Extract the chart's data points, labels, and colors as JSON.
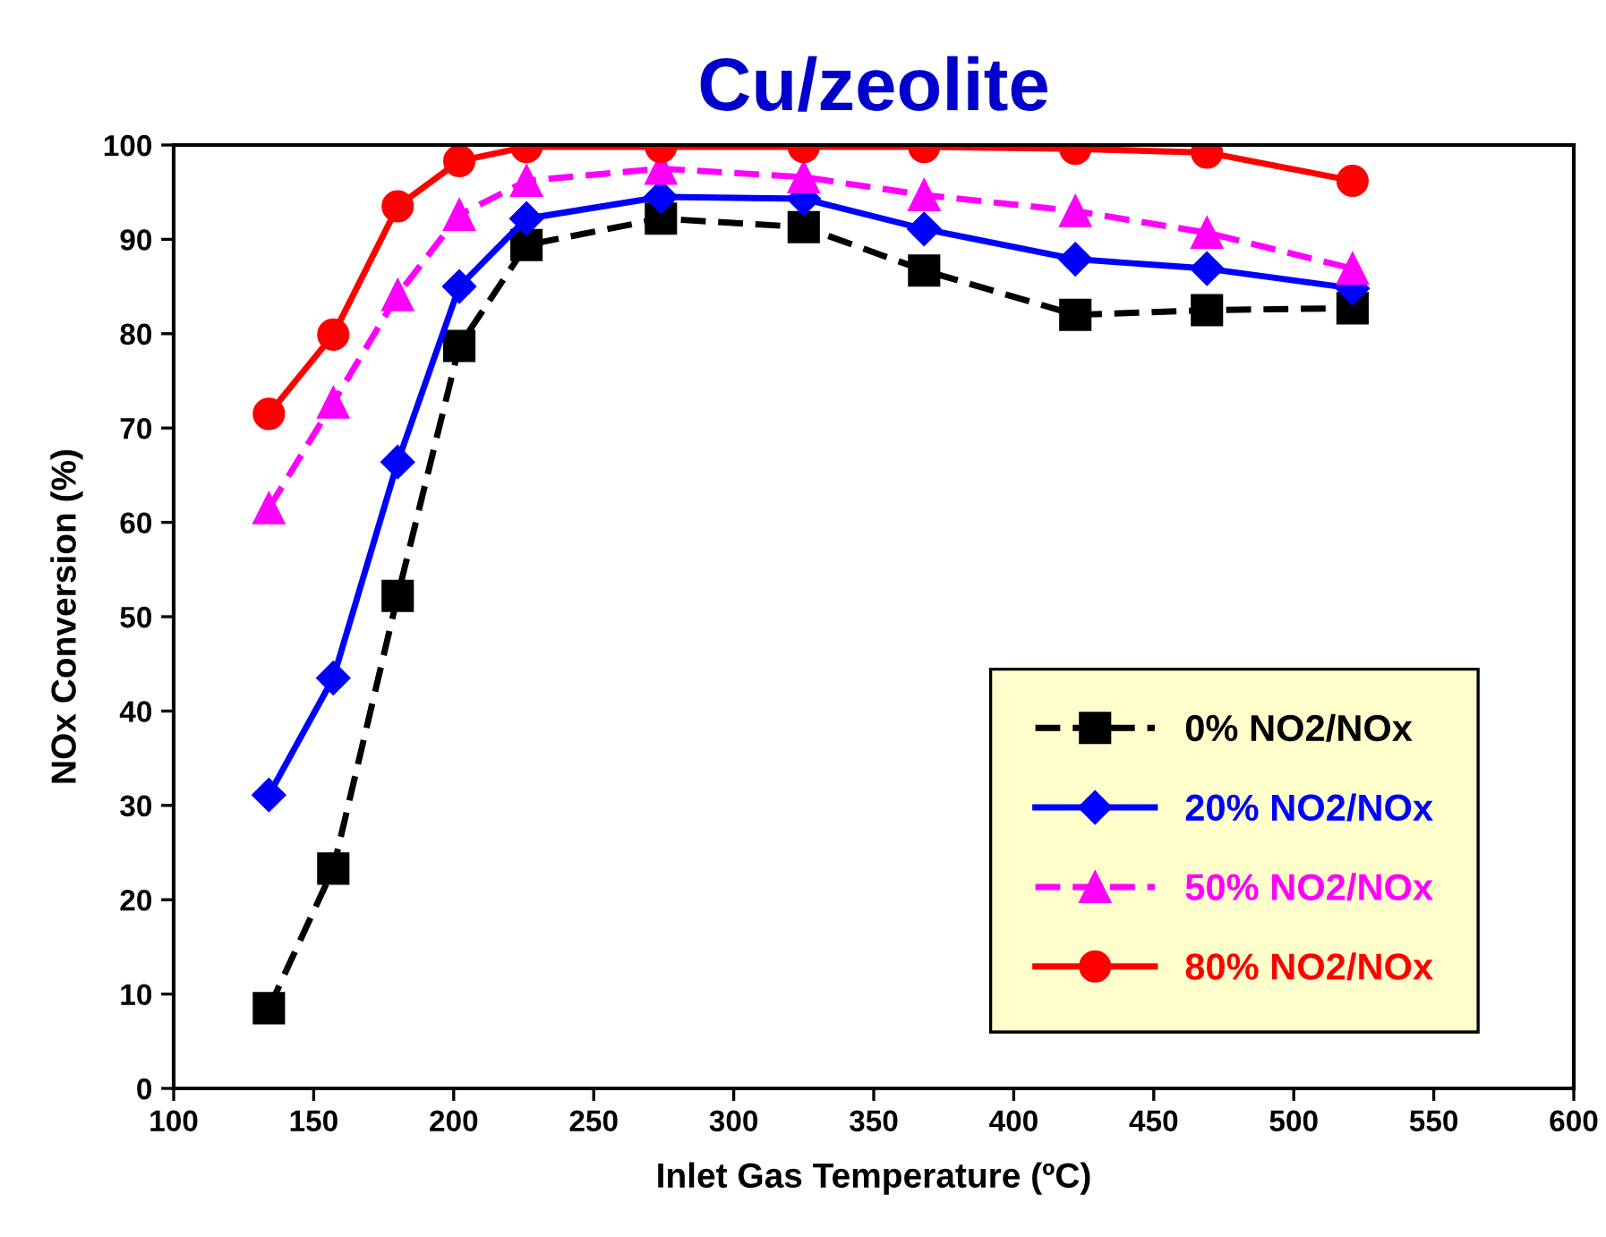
{
  "chart_data": {
    "type": "line",
    "title": "Cu/zeolite",
    "xlabel": "Inlet Gas Temperature (ºC)",
    "ylabel": "NOx Conversion (%)",
    "xlim": [
      100,
      600
    ],
    "xticks": [
      100,
      150,
      200,
      250,
      300,
      350,
      400,
      450,
      500,
      550,
      600
    ],
    "ylim": [
      0,
      100
    ],
    "yticks": [
      0,
      10,
      20,
      30,
      40,
      50,
      60,
      70,
      80,
      90,
      100
    ],
    "grid": false,
    "legend": "bottom right",
    "series": [
      {
        "name": "0% NO2/NOx",
        "color": "#000000",
        "marker": "square",
        "line_style": "dashed",
        "x": [
          134,
          157,
          180,
          202,
          226,
          274,
          325,
          368,
          422,
          469,
          521
        ],
        "values": [
          8.5,
          23.3,
          52.2,
          78.7,
          89.4,
          92.2,
          91.3,
          86.7,
          82.0,
          82.5,
          82.7
        ]
      },
      {
        "name": "20% NO2/NOx",
        "color": "#0000ff",
        "marker": "diamond",
        "line_style": "solid",
        "x": [
          134,
          157,
          180,
          202,
          226,
          274,
          325,
          368,
          422,
          469,
          521
        ],
        "values": [
          31.1,
          43.5,
          66.4,
          85.0,
          92.2,
          94.5,
          94.3,
          91.1,
          87.9,
          86.9,
          84.8
        ]
      },
      {
        "name": "50% NO2/NOx",
        "color": "#ff00ff",
        "marker": "triangle",
        "line_style": "dashed",
        "x": [
          134,
          157,
          180,
          202,
          226,
          274,
          325,
          368,
          422,
          469,
          521
        ],
        "values": [
          61.5,
          72.7,
          84.1,
          92.6,
          96.2,
          97.5,
          96.6,
          94.7,
          93.0,
          90.7,
          86.9
        ]
      },
      {
        "name": "80% NO2/NOx",
        "color": "#ff0000",
        "marker": "circle",
        "line_style": "solid",
        "x": [
          134,
          157,
          180,
          202,
          226,
          274,
          325,
          368,
          422,
          469,
          521
        ],
        "values": [
          71.5,
          79.9,
          93.5,
          98.3,
          99.8,
          99.8,
          99.8,
          99.8,
          99.6,
          99.2,
          96.2
        ]
      }
    ]
  }
}
